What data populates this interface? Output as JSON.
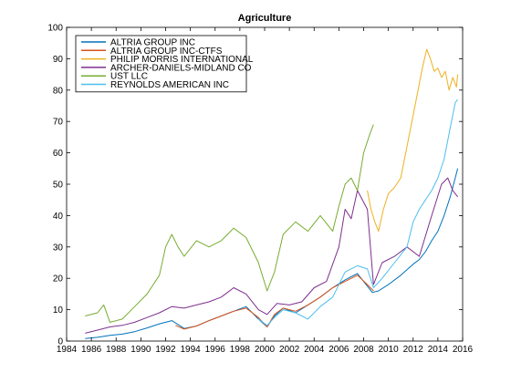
{
  "chart_data": {
    "type": "line",
    "title": "Agriculture",
    "xlabel": "",
    "ylabel": "",
    "xlim": [
      1984,
      2016
    ],
    "ylim": [
      0,
      100
    ],
    "x_ticks": [
      1984,
      1986,
      1988,
      1990,
      1992,
      1994,
      1996,
      1998,
      2000,
      2002,
      2004,
      2006,
      2008,
      2010,
      2012,
      2014,
      2016
    ],
    "y_ticks": [
      0,
      10,
      20,
      30,
      40,
      50,
      60,
      70,
      80,
      90,
      100
    ],
    "grid": false,
    "legend_position": "top-left",
    "series": [
      {
        "name": "ALTRIA GROUP INC",
        "color": "#0072bd",
        "points": [
          [
            1985.5,
            0.8
          ],
          [
            1986.5,
            1.2
          ],
          [
            1987.5,
            1.8
          ],
          [
            1988.5,
            2.2
          ],
          [
            1989.5,
            3.0
          ],
          [
            1990.5,
            4.2
          ],
          [
            1991.5,
            5.5
          ],
          [
            1992.5,
            6.5
          ],
          [
            1993.5,
            4.0
          ],
          [
            1994.5,
            4.8
          ],
          [
            1995.5,
            6.5
          ],
          [
            1996.5,
            8.0
          ],
          [
            1997.5,
            9.5
          ],
          [
            1998.5,
            11.0
          ],
          [
            1999.5,
            7.0
          ],
          [
            2000.2,
            4.5
          ],
          [
            2000.8,
            8.0
          ],
          [
            2001.5,
            10.5
          ],
          [
            2002.5,
            9.0
          ],
          [
            2003.5,
            11.5
          ],
          [
            2004.5,
            14.0
          ],
          [
            2005.5,
            17.0
          ],
          [
            2006.5,
            19.5
          ],
          [
            2007.5,
            21.5
          ],
          [
            2008.3,
            17.5
          ],
          [
            2008.7,
            15.5
          ],
          [
            2009.2,
            16.0
          ],
          [
            2010.0,
            18.0
          ],
          [
            2011.0,
            21.0
          ],
          [
            2012.0,
            24.5
          ],
          [
            2012.5,
            26.0
          ],
          [
            2013.0,
            28.5
          ],
          [
            2013.5,
            32.0
          ],
          [
            2014.0,
            35.0
          ],
          [
            2014.5,
            40.0
          ],
          [
            2015.0,
            46.0
          ],
          [
            2015.4,
            52.0
          ],
          [
            2015.6,
            55.0
          ]
        ]
      },
      {
        "name": "ALTRIA GROUP INC-CTFS",
        "color": "#d95319",
        "points": [
          [
            1992.8,
            5.0
          ],
          [
            1993.5,
            3.8
          ],
          [
            1994.5,
            4.8
          ],
          [
            1995.5,
            6.5
          ],
          [
            1996.5,
            8.0
          ],
          [
            1997.5,
            9.5
          ],
          [
            1998.5,
            10.5
          ],
          [
            1999.5,
            7.5
          ],
          [
            2000.2,
            4.5
          ],
          [
            2000.8,
            8.5
          ],
          [
            2001.5,
            10.5
          ],
          [
            2002.5,
            9.5
          ],
          [
            2003.5,
            11.5
          ],
          [
            2004.5,
            14.0
          ],
          [
            2005.5,
            17.0
          ],
          [
            2006.5,
            19.0
          ],
          [
            2007.5,
            21.0
          ],
          [
            2008.3,
            18.0
          ],
          [
            2008.8,
            16.0
          ]
        ]
      },
      {
        "name": "PHILIP MORRIS INTERNATIONAL",
        "color": "#edb120",
        "points": [
          [
            2008.3,
            48.0
          ],
          [
            2008.6,
            42.0
          ],
          [
            2008.9,
            38.0
          ],
          [
            2009.2,
            35.0
          ],
          [
            2009.6,
            42.0
          ],
          [
            2010.0,
            47.0
          ],
          [
            2010.5,
            49.0
          ],
          [
            2011.0,
            52.0
          ],
          [
            2011.5,
            62.0
          ],
          [
            2012.0,
            72.0
          ],
          [
            2012.5,
            82.0
          ],
          [
            2012.8,
            88.0
          ],
          [
            2013.1,
            93.0
          ],
          [
            2013.4,
            90.0
          ],
          [
            2013.7,
            86.0
          ],
          [
            2014.0,
            87.0
          ],
          [
            2014.3,
            84.0
          ],
          [
            2014.6,
            86.0
          ],
          [
            2014.9,
            80.0
          ],
          [
            2015.2,
            84.0
          ],
          [
            2015.5,
            81.0
          ],
          [
            2015.6,
            85.0
          ]
        ]
      },
      {
        "name": "ARCHER-DANIELS-MIDLAND CO",
        "color": "#7e2f8e",
        "points": [
          [
            1985.5,
            2.5
          ],
          [
            1986.5,
            3.5
          ],
          [
            1987.5,
            4.5
          ],
          [
            1988.5,
            5.0
          ],
          [
            1989.5,
            6.0
          ],
          [
            1990.5,
            7.5
          ],
          [
            1991.5,
            9.0
          ],
          [
            1992.5,
            11.0
          ],
          [
            1993.5,
            10.5
          ],
          [
            1994.5,
            11.5
          ],
          [
            1995.5,
            12.5
          ],
          [
            1996.5,
            14.0
          ],
          [
            1997.5,
            17.0
          ],
          [
            1998.5,
            15.0
          ],
          [
            1999.5,
            10.0
          ],
          [
            2000.2,
            8.5
          ],
          [
            2001.0,
            12.0
          ],
          [
            2002.0,
            11.5
          ],
          [
            2003.0,
            12.5
          ],
          [
            2004.0,
            17.0
          ],
          [
            2005.0,
            19.0
          ],
          [
            2006.0,
            30.0
          ],
          [
            2006.5,
            42.0
          ],
          [
            2007.0,
            39.0
          ],
          [
            2007.5,
            48.0
          ],
          [
            2008.3,
            42.0
          ],
          [
            2008.8,
            18.0
          ],
          [
            2009.5,
            25.0
          ],
          [
            2010.5,
            27.0
          ],
          [
            2011.5,
            30.0
          ],
          [
            2012.5,
            27.0
          ],
          [
            2013.5,
            40.0
          ],
          [
            2014.3,
            50.0
          ],
          [
            2014.8,
            52.0
          ],
          [
            2015.2,
            48.0
          ],
          [
            2015.6,
            46.0
          ]
        ]
      },
      {
        "name": "UST LLC",
        "color": "#77ac30",
        "points": [
          [
            1985.5,
            8.0
          ],
          [
            1986.5,
            9.0
          ],
          [
            1987.0,
            11.5
          ],
          [
            1987.5,
            6.0
          ],
          [
            1988.5,
            7.0
          ],
          [
            1989.5,
            11.0
          ],
          [
            1990.5,
            15.0
          ],
          [
            1991.5,
            21.0
          ],
          [
            1992.0,
            30.0
          ],
          [
            1992.5,
            34.0
          ],
          [
            1993.0,
            30.0
          ],
          [
            1993.5,
            27.0
          ],
          [
            1994.5,
            32.0
          ],
          [
            1995.5,
            30.0
          ],
          [
            1996.5,
            32.0
          ],
          [
            1997.5,
            36.0
          ],
          [
            1998.5,
            33.0
          ],
          [
            1999.5,
            25.0
          ],
          [
            2000.2,
            16.0
          ],
          [
            2000.8,
            22.0
          ],
          [
            2001.5,
            34.0
          ],
          [
            2002.5,
            38.0
          ],
          [
            2003.5,
            35.0
          ],
          [
            2004.5,
            40.0
          ],
          [
            2005.5,
            35.0
          ],
          [
            2006.0,
            43.0
          ],
          [
            2006.5,
            50.0
          ],
          [
            2007.0,
            52.0
          ],
          [
            2007.5,
            48.0
          ],
          [
            2008.0,
            60.0
          ],
          [
            2008.5,
            66.0
          ],
          [
            2008.8,
            69.0
          ]
        ]
      },
      {
        "name": "REYNOLDS AMERICAN INC",
        "color": "#4dbeee",
        "points": [
          [
            1999.5,
            7.0
          ],
          [
            2000.2,
            5.0
          ],
          [
            2000.8,
            7.5
          ],
          [
            2001.5,
            10.0
          ],
          [
            2002.5,
            9.0
          ],
          [
            2003.5,
            7.0
          ],
          [
            2004.5,
            11.0
          ],
          [
            2005.5,
            14.0
          ],
          [
            2006.5,
            22.0
          ],
          [
            2007.5,
            24.0
          ],
          [
            2008.3,
            23.0
          ],
          [
            2008.8,
            17.0
          ],
          [
            2009.5,
            20.0
          ],
          [
            2010.5,
            25.0
          ],
          [
            2011.5,
            30.0
          ],
          [
            2012.0,
            38.0
          ],
          [
            2012.5,
            42.0
          ],
          [
            2013.0,
            45.0
          ],
          [
            2013.5,
            48.0
          ],
          [
            2014.0,
            52.0
          ],
          [
            2014.5,
            58.0
          ],
          [
            2015.0,
            68.0
          ],
          [
            2015.4,
            76.0
          ],
          [
            2015.6,
            77.0
          ]
        ]
      }
    ]
  }
}
